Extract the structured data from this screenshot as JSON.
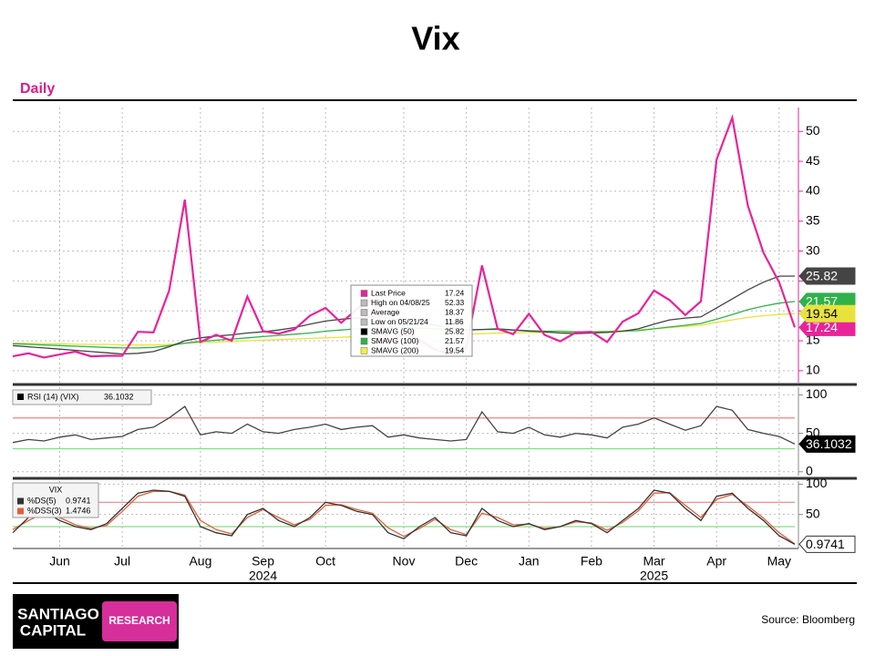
{
  "title": "Vix",
  "subtitle": "Daily",
  "chart_data": [
    {
      "type": "line",
      "categories": [
        null,
        null,
        null,
        "Jun",
        null,
        null,
        null,
        "Jul",
        null,
        null,
        null,
        null,
        "Aug",
        null,
        null,
        null,
        "Sep",
        null,
        null,
        null,
        "Oct",
        null,
        null,
        null,
        null,
        "Nov",
        null,
        null,
        null,
        "Dec",
        null,
        null,
        null,
        "Jan",
        null,
        null,
        null,
        "Feb",
        null,
        null,
        null,
        "Mar",
        null,
        null,
        null,
        "Apr",
        null,
        null,
        null,
        "May",
        null
      ],
      "year_labels": [
        null,
        null,
        null,
        null,
        null,
        null,
        null,
        null,
        null,
        null,
        null,
        null,
        null,
        null,
        null,
        null,
        "2024",
        null,
        null,
        null,
        null,
        null,
        null,
        null,
        null,
        null,
        null,
        null,
        null,
        null,
        null,
        null,
        null,
        null,
        null,
        null,
        null,
        null,
        null,
        null,
        null,
        "2025",
        null,
        null,
        null,
        null,
        null,
        null,
        null,
        null,
        null
      ],
      "ylim": [
        8,
        54
      ],
      "yticks": [
        10,
        15,
        20,
        25,
        30,
        35,
        40,
        45,
        50
      ],
      "grid": true,
      "series": [
        {
          "name": "Last Price",
          "color": "#e8239a",
          "tag_text": "#ffffff",
          "values": [
            12.4,
            12.9,
            12.2,
            12.7,
            13.2,
            12.4,
            12.5,
            12.5,
            16.5,
            16.4,
            23.4,
            38.6,
            14.8,
            16.0,
            15.0,
            22.4,
            16.6,
            16.2,
            16.9,
            19.2,
            20.5,
            18.0,
            20.3,
            21.9,
            14.9,
            16.1,
            15.2,
            13.5,
            12.8,
            13.8,
            27.6,
            17.0,
            16.1,
            19.5,
            16.0,
            14.9,
            16.4,
            16.5,
            14.8,
            18.2,
            19.6,
            23.4,
            21.8,
            19.3,
            21.6,
            45.3,
            52.3,
            37.6,
            29.7,
            24.8,
            17.24
          ]
        },
        {
          "name": "SMAVG (50)",
          "color": "#444444",
          "tag_text": "#ffffff",
          "values": [
            14.2,
            14.0,
            13.8,
            13.6,
            13.4,
            13.2,
            13.0,
            12.8,
            12.9,
            13.2,
            14.0,
            15.0,
            15.5,
            15.8,
            16.0,
            16.3,
            16.5,
            16.8,
            17.2,
            17.8,
            18.3,
            18.6,
            18.8,
            19.0,
            18.8,
            18.4,
            18.0,
            17.6,
            17.2,
            16.8,
            16.9,
            17.0,
            16.8,
            16.6,
            16.5,
            16.3,
            16.2,
            16.3,
            16.4,
            16.6,
            17.0,
            17.8,
            18.5,
            18.8,
            19.0,
            20.5,
            22.0,
            23.5,
            24.8,
            25.8,
            25.82
          ]
        },
        {
          "name": "SMAVG (100)",
          "color": "#2fb24a",
          "tag_text": "#ffffff",
          "values": [
            14.5,
            14.4,
            14.3,
            14.2,
            14.1,
            14.0,
            13.9,
            13.8,
            13.8,
            13.9,
            14.2,
            14.6,
            14.9,
            15.1,
            15.3,
            15.5,
            15.7,
            15.9,
            16.1,
            16.3,
            16.6,
            16.8,
            17.0,
            17.1,
            17.2,
            17.2,
            17.1,
            17.0,
            16.9,
            16.8,
            16.9,
            16.9,
            16.8,
            16.7,
            16.6,
            16.6,
            16.5,
            16.5,
            16.5,
            16.6,
            16.7,
            17.0,
            17.3,
            17.6,
            17.9,
            18.6,
            19.4,
            20.2,
            20.8,
            21.3,
            21.57
          ]
        },
        {
          "name": "SMAVG (200)",
          "color": "#e8e23c",
          "tag_text": "#000000",
          "values": [
            14.6,
            14.6,
            14.5,
            14.5,
            14.4,
            14.4,
            14.4,
            14.3,
            14.3,
            14.3,
            14.4,
            14.6,
            14.7,
            14.8,
            14.9,
            15.0,
            15.1,
            15.2,
            15.3,
            15.4,
            15.5,
            15.6,
            15.7,
            15.8,
            15.9,
            16.0,
            16.0,
            16.0,
            16.0,
            16.1,
            16.2,
            16.3,
            16.3,
            16.4,
            16.4,
            16.4,
            16.5,
            16.5,
            16.6,
            16.7,
            16.8,
            17.0,
            17.2,
            17.4,
            17.6,
            18.1,
            18.5,
            18.9,
            19.2,
            19.4,
            19.54
          ]
        }
      ],
      "legend": [
        {
          "label": "Last Price",
          "value": 17.24,
          "color": "#e8239a"
        },
        {
          "label": "High on 04/08/25",
          "value": 52.33,
          "color": "#bbbbbb"
        },
        {
          "label": "Average",
          "value": 18.37,
          "color": "#bbbbbb"
        },
        {
          "label": "Low on 05/21/24",
          "value": 11.86,
          "color": "#bbbbbb"
        },
        {
          "label": "SMAVG (50)",
          "value": 25.82,
          "color": "#000000"
        },
        {
          "label": "SMAVG (100)",
          "value": 21.57,
          "color": "#2fb24a"
        },
        {
          "label": "SMAVG (200)",
          "value": 19.54,
          "color": "#f2ee4a"
        }
      ]
    },
    {
      "type": "line",
      "ylim": [
        -5,
        110
      ],
      "yticks": [
        0,
        50,
        100
      ],
      "grid": true,
      "reference_lines": [
        {
          "value": 70,
          "color": "#f08080"
        },
        {
          "value": 30,
          "color": "#80e080"
        }
      ],
      "series": [
        {
          "name": "RSI (14) (VIX)",
          "color": "#444444",
          "tag_color": "#000000",
          "tag_text": "#ffffff",
          "values": [
            38,
            42,
            40,
            45,
            48,
            42,
            44,
            46,
            55,
            58,
            70,
            85,
            48,
            52,
            50,
            62,
            52,
            50,
            55,
            58,
            62,
            55,
            58,
            60,
            45,
            48,
            44,
            42,
            40,
            42,
            78,
            52,
            50,
            58,
            48,
            45,
            50,
            48,
            44,
            58,
            62,
            70,
            62,
            54,
            60,
            85,
            80,
            55,
            50,
            46,
            36.1032
          ]
        }
      ]
    },
    {
      "type": "line",
      "legend_title": "VIX",
      "ylim": [
        -3,
        105
      ],
      "yticks": [
        50,
        100
      ],
      "grid": true,
      "reference_lines": [
        {
          "value": 70,
          "color": "#f08080"
        },
        {
          "value": 30,
          "color": "#80e080"
        }
      ],
      "series": [
        {
          "name": "%DS(5)",
          "color": "#333333",
          "tag_color": "#ffffff",
          "tag_text": "#000000",
          "values": [
            20,
            45,
            55,
            40,
            30,
            25,
            35,
            60,
            85,
            90,
            88,
            80,
            30,
            20,
            15,
            50,
            60,
            40,
            30,
            45,
            70,
            65,
            55,
            50,
            20,
            10,
            30,
            45,
            20,
            15,
            60,
            40,
            30,
            35,
            25,
            30,
            40,
            35,
            20,
            40,
            60,
            90,
            85,
            60,
            40,
            80,
            85,
            60,
            40,
            15,
            0.9741
          ]
        },
        {
          "name": "%DSS(3)",
          "color": "#e0603a",
          "values": [
            25,
            40,
            52,
            45,
            33,
            27,
            32,
            55,
            80,
            88,
            88,
            82,
            40,
            25,
            18,
            45,
            58,
            45,
            33,
            42,
            65,
            66,
            58,
            52,
            28,
            14,
            27,
            42,
            25,
            17,
            52,
            45,
            33,
            34,
            27,
            30,
            38,
            36,
            24,
            37,
            56,
            85,
            86,
            65,
            45,
            75,
            83,
            64,
            44,
            20,
            1.4746
          ]
        }
      ]
    }
  ],
  "footer": {
    "logo_line1": "SANTIAGO",
    "logo_line2": "CAPITAL",
    "badge": "RESEARCH",
    "source": "Source: Bloomberg"
  }
}
